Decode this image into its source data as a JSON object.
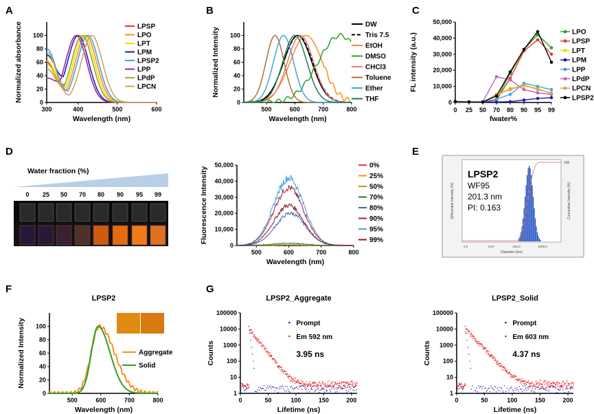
{
  "panels": {
    "A": "A",
    "B": "B",
    "C": "C",
    "D": "D",
    "E": "E",
    "F": "F",
    "G": "G"
  },
  "chart_data": [
    {
      "id": "A",
      "type": "line",
      "xlabel": "Wavelength (nm)",
      "ylabel": "Normalized absorbance",
      "xlim": [
        320,
        600
      ],
      "ylim": [
        0,
        120
      ],
      "xticks": [
        300,
        400,
        500,
        600
      ],
      "yticks": [
        0,
        20,
        40,
        60,
        80,
        100
      ],
      "series": [
        {
          "name": "LPSP",
          "color": "#e8332b",
          "peak": 410,
          "base": 60
        },
        {
          "name": "LPO",
          "color": "#ff8c1a",
          "peak": 420,
          "base": 58
        },
        {
          "name": "LPT",
          "color": "#e8e000",
          "peak": 415,
          "base": 62
        },
        {
          "name": "LPM",
          "color": "#1a1ab3",
          "peak": 400,
          "base": 70
        },
        {
          "name": "LPSP2",
          "color": "#3fa2e0",
          "peak": 425,
          "base": 80
        },
        {
          "name": "LPP",
          "color": "#a020a0",
          "peak": 395,
          "base": 35
        },
        {
          "name": "LPdP",
          "color": "#9ab030",
          "peak": 410,
          "base": 50
        },
        {
          "name": "LPCN",
          "color": "#d4a060",
          "peak": 435,
          "base": 75
        }
      ]
    },
    {
      "id": "B",
      "type": "line",
      "xlabel": "Wavelength (nm)",
      "ylabel": "Normalized Intensity",
      "xlim": [
        420,
        800
      ],
      "ylim": [
        0,
        120
      ],
      "xticks": [
        500,
        600,
        700,
        800
      ],
      "yticks": [
        0,
        20,
        40,
        60,
        80,
        100
      ],
      "series": [
        {
          "name": "DW",
          "color": "#000000",
          "peak": 610,
          "width": 70,
          "dash": ""
        },
        {
          "name": "Tris 7.5",
          "color": "#000000",
          "peak": 612,
          "width": 72,
          "dash": "5,3"
        },
        {
          "name": "EtOH",
          "color": "#ff8c1a",
          "peak": 640,
          "width": 80,
          "dash": ""
        },
        {
          "name": "DMSO",
          "color": "#2aa02a",
          "peak": 760,
          "width": 110,
          "dash": ""
        },
        {
          "name": "CHCl3",
          "color": "#e87a7a",
          "peak": 620,
          "width": 65,
          "dash": ""
        },
        {
          "name": "Toluene",
          "color": "#b07030",
          "peak": 530,
          "width": 45,
          "dash": ""
        },
        {
          "name": "Ether",
          "color": "#3fa2e0",
          "peak": 560,
          "width": 50,
          "dash": ""
        },
        {
          "name": "THF",
          "color": "#1a7a50",
          "peak": 600,
          "width": 60,
          "dash": ""
        }
      ]
    },
    {
      "id": "C",
      "type": "line",
      "xlabel": "fwater%",
      "ylabel": "FL intensity (a.u.)",
      "categories": [
        "0",
        "25",
        "50",
        "70",
        "80",
        "90",
        "95",
        "99"
      ],
      "ylim": [
        0,
        50000
      ],
      "yticks": [
        0,
        10000,
        20000,
        30000,
        40000,
        50000
      ],
      "series": [
        {
          "name": "LPO",
          "color": "#2aa02a",
          "values": [
            500,
            300,
            200,
            2000,
            18000,
            33000,
            42000,
            34000
          ]
        },
        {
          "name": "LPSP",
          "color": "#e8332b",
          "values": [
            400,
            300,
            200,
            1500,
            15000,
            32000,
            39000,
            30000
          ]
        },
        {
          "name": "LPT",
          "color": "#e8e000",
          "values": [
            300,
            200,
            200,
            4000,
            9000,
            10000,
            9000,
            5000
          ]
        },
        {
          "name": "LPM",
          "color": "#1a1ab3",
          "values": [
            200,
            200,
            200,
            300,
            500,
            1500,
            2500,
            3000
          ]
        },
        {
          "name": "LPP",
          "color": "#3fa2e0",
          "values": [
            300,
            200,
            300,
            2000,
            5000,
            12000,
            10000,
            8000
          ]
        },
        {
          "name": "LPdP",
          "color": "#c060c0",
          "values": [
            200,
            200,
            300,
            16000,
            14000,
            8000,
            6000,
            5000
          ]
        },
        {
          "name": "LPCN",
          "color": "#d4a060",
          "values": [
            300,
            200,
            200,
            5000,
            8000,
            11000,
            8000,
            6000
          ]
        },
        {
          "name": "LPSP2",
          "color": "#000000",
          "values": [
            600,
            400,
            300,
            4000,
            19000,
            33000,
            44000,
            25000
          ]
        }
      ]
    },
    {
      "id": "D",
      "type": "line",
      "xlabel": "Wavelength (nm)",
      "ylabel": "Fluorescence Intensity",
      "xlim": [
        440,
        800
      ],
      "ylim": [
        0,
        50000
      ],
      "xticks": [
        500,
        600,
        700,
        800
      ],
      "yticks": [
        0,
        10000,
        20000,
        30000,
        40000,
        50000
      ],
      "series": [
        {
          "name": "0%",
          "color": "#e8336b",
          "peak": 600,
          "amp": 300
        },
        {
          "name": "25%",
          "color": "#ff8c1a",
          "peak": 600,
          "amp": 400
        },
        {
          "name": "50%",
          "color": "#a0a030",
          "peak": 600,
          "amp": 600
        },
        {
          "name": "70%",
          "color": "#1a7a30",
          "peak": 600,
          "amp": 1500
        },
        {
          "name": "80%",
          "color": "#4060c0",
          "peak": 605,
          "amp": 20000
        },
        {
          "name": "90%",
          "color": "#a02040",
          "peak": 600,
          "amp": 36000
        },
        {
          "name": "95%",
          "color": "#3fa2e0",
          "peak": 600,
          "amp": 42000
        },
        {
          "name": "99%",
          "color": "#8b1a1a",
          "peak": 600,
          "amp": 25000
        }
      ]
    },
    {
      "id": "F",
      "type": "line",
      "title": "LPSP2",
      "xlabel": "Wavelength (nm)",
      "ylabel": "Normalized Intensity",
      "xlim": [
        420,
        800
      ],
      "ylim": [
        0,
        120
      ],
      "xticks": [
        500,
        600,
        700,
        800
      ],
      "yticks": [
        0,
        20,
        40,
        60,
        80,
        100
      ],
      "series": [
        {
          "name": "Aggregate",
          "color": "#ff8c1a",
          "peak": 595,
          "width": 75
        },
        {
          "name": "Solid",
          "color": "#2aa02a",
          "peak": 590,
          "width": 60
        }
      ]
    },
    {
      "id": "G1",
      "type": "scatter",
      "title": "LPSP2_Aggregate",
      "xlabel": "Lifetime (ns)",
      "ylabel": "Counts",
      "xlim": [
        0,
        210
      ],
      "xticks": [
        0,
        50,
        100,
        150,
        200
      ],
      "yticks": [
        "1",
        "10",
        "100",
        "1000",
        "10000",
        "100000"
      ],
      "series": [
        {
          "name": "Prompt",
          "color": "#1a1ab3"
        },
        {
          "name": "Em 592 nm",
          "color": "#e82020"
        }
      ],
      "annotation": "3.95 ns"
    },
    {
      "id": "G2",
      "type": "scatter",
      "title": "LPSP2_Solid",
      "xlabel": "Lifetime (ns)",
      "ylabel": "Counts",
      "xlim": [
        0,
        210
      ],
      "xticks": [
        0,
        50,
        100,
        150,
        200
      ],
      "yticks": [
        "1",
        "10",
        "100",
        "1000",
        "10000",
        "100000"
      ],
      "series": [
        {
          "name": "Prompt",
          "color": "#1a1ab3"
        },
        {
          "name": "Em 603 nm",
          "color": "#e82020"
        }
      ],
      "annotation": "4.37 ns"
    }
  ],
  "vials": {
    "header": "Water fraction (%)",
    "labels": [
      "0",
      "25",
      "50",
      "70",
      "80",
      "90",
      "95",
      "99"
    ]
  },
  "dls": {
    "name": "LPSP2",
    "sample": "WF95",
    "size": "201.3 nm",
    "pi": "PI: 0.163",
    "ylabel_left": "Differential Intensity (%)",
    "ylabel_right": "Cumulative Intensity (%)",
    "xlabel": "Diameter (nm)",
    "xticks": [
      "1.0",
      "10.0",
      "100.0",
      "1000.0"
    ],
    "ytop": "100"
  }
}
